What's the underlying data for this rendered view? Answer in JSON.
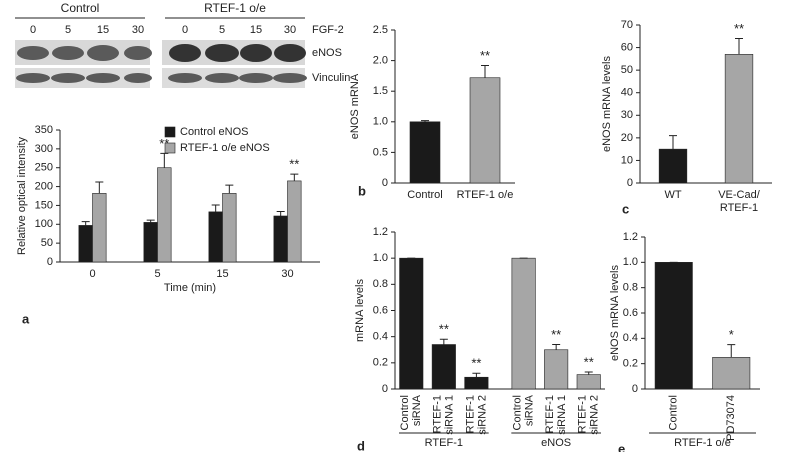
{
  "blot": {
    "groups": [
      "Control",
      "RTEF-1 o/e"
    ],
    "lanes": [
      "0",
      "5",
      "15",
      "30",
      "0",
      "5",
      "15",
      "30"
    ],
    "rows": [
      "FGF-2",
      "eNOS",
      "Vinculin"
    ]
  },
  "chart_data": [
    {
      "type": "bar",
      "panel": "a",
      "y_label": "Relative optical intensity",
      "x_label": "Time (min)",
      "categories": [
        "0",
        "5",
        "15",
        "30"
      ],
      "series": [
        {
          "name": "Control eNOS",
          "color": "#1a1a1a",
          "values": [
            97,
            105,
            133,
            122
          ],
          "errors": [
            10,
            6,
            18,
            12
          ],
          "significance": [
            null,
            null,
            null,
            null
          ]
        },
        {
          "name": "RTEF-1 o/e eNOS",
          "color": "#a6a6a6",
          "values": [
            182,
            250,
            182,
            215
          ],
          "errors": [
            30,
            38,
            22,
            18
          ],
          "significance": [
            null,
            "**",
            null,
            "**"
          ]
        }
      ],
      "ylim": [
        0,
        350
      ],
      "yticks": [
        0,
        50,
        100,
        150,
        200,
        250,
        300,
        350
      ]
    },
    {
      "type": "bar",
      "panel": "b",
      "y_label": "eNOS mRNA",
      "categories": [
        "Control",
        "RTEF-1 o/e"
      ],
      "series": [
        {
          "colors": [
            "#1a1a1a",
            "#a6a6a6"
          ],
          "values": [
            1.0,
            1.72
          ],
          "errors": [
            0.02,
            0.2
          ],
          "significance": [
            null,
            "**"
          ]
        }
      ],
      "ylim": [
        0,
        2.5
      ],
      "yticks": [
        {
          "value": 0,
          "label": "0"
        },
        0.5,
        {
          "value": 1,
          "label": "1.0"
        },
        1.5,
        {
          "value": 2,
          "label": "2.0"
        },
        2.5
      ]
    },
    {
      "type": "bar",
      "panel": "c",
      "y_label": "eNOS mRNA levels",
      "categories": [
        [
          "WT"
        ],
        [
          "VE-Cad/",
          "RTEF-1"
        ]
      ],
      "series": [
        {
          "colors": [
            "#1a1a1a",
            "#a6a6a6"
          ],
          "values": [
            15,
            57
          ],
          "errors": [
            6,
            7
          ],
          "significance": [
            null,
            "**"
          ]
        }
      ],
      "ylim": [
        0,
        70
      ],
      "yticks": [
        0,
        10,
        20,
        30,
        40,
        50,
        60,
        70
      ]
    },
    {
      "type": "bar",
      "panel": "d",
      "y_label": "mRNA levels",
      "categories": [
        [
          "Control",
          "siRNA"
        ],
        [
          "RTEF-1",
          "siRNA 1"
        ],
        [
          "RTEF-1",
          "siRNA 2"
        ],
        [
          "Control",
          "siRNA"
        ],
        [
          "RTEF-1",
          "siRNA 1"
        ],
        [
          "RTEF-1",
          "siRNA 2"
        ]
      ],
      "groups": [
        "RTEF-1",
        "eNOS"
      ],
      "series": [
        {
          "colors": [
            "#1a1a1a",
            "#1a1a1a",
            "#1a1a1a",
            "#a6a6a6",
            "#a6a6a6",
            "#a6a6a6"
          ],
          "values": [
            1.0,
            0.34,
            0.09,
            1.0,
            0.3,
            0.11
          ],
          "errors": [
            0,
            0.04,
            0.03,
            0,
            0.04,
            0.02
          ],
          "significance": [
            null,
            "**",
            "**",
            null,
            "**",
            "**"
          ]
        }
      ],
      "ylim": [
        0,
        1.2
      ],
      "yticks": [
        {
          "value": 0,
          "label": "0"
        },
        0.2,
        0.4,
        0.6,
        0.8,
        {
          "value": 1,
          "label": "1.0"
        },
        1.2
      ]
    },
    {
      "type": "bar",
      "panel": "e",
      "y_label": "eNOS mRNA levels",
      "categories": [
        [
          "Control"
        ],
        [
          "PD73074"
        ]
      ],
      "groups": [
        "RTEF-1 o/e"
      ],
      "series": [
        {
          "colors": [
            "#1a1a1a",
            "#a6a6a6"
          ],
          "values": [
            1.0,
            0.25
          ],
          "errors": [
            0,
            0.1
          ],
          "significance": [
            null,
            "*"
          ]
        }
      ],
      "ylim": [
        0,
        1.2
      ],
      "yticks": [
        {
          "value": 0,
          "label": "0"
        },
        0.2,
        0.4,
        0.6,
        0.8,
        {
          "value": 1,
          "label": "1.0"
        },
        1.2
      ]
    }
  ]
}
